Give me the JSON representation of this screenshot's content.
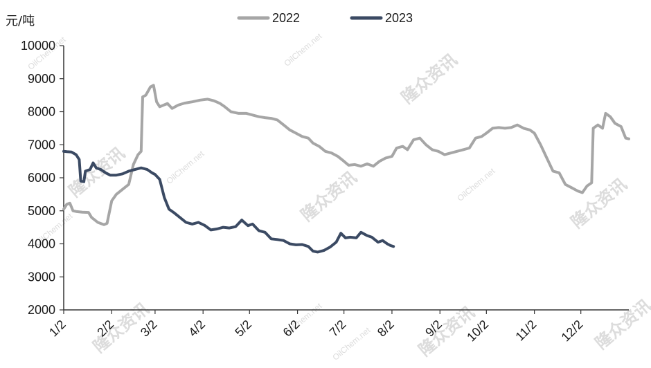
{
  "chart_data": {
    "type": "line",
    "ylabel": "元/吨",
    "ylim": [
      2000,
      10000
    ],
    "y_ticks": [
      "2000",
      "3000",
      "4000",
      "5000",
      "6000",
      "7000",
      "8000",
      "9000",
      "10000"
    ],
    "x_ticks": [
      "1/2",
      "2/2",
      "3/2",
      "4/2",
      "5/2",
      "6/2",
      "7/2",
      "8/2",
      "9/2",
      "10/2",
      "11/2",
      "12/2"
    ],
    "legend_position": "top",
    "grid": false,
    "series": [
      {
        "name": "2022",
        "color": "#a6a6a6",
        "points": [
          [
            "1/2",
            5050
          ],
          [
            "1/4",
            5200
          ],
          [
            "1/6",
            5230
          ],
          [
            "1/8",
            5000
          ],
          [
            "1/10",
            4980
          ],
          [
            "1/14",
            4960
          ],
          [
            "1/18",
            4950
          ],
          [
            "1/20",
            4800
          ],
          [
            "1/24",
            4650
          ],
          [
            "1/28",
            4580
          ],
          [
            "1/30",
            4620
          ],
          [
            "2/2",
            5300
          ],
          [
            "2/5",
            5500
          ],
          [
            "2/9",
            5650
          ],
          [
            "2/13",
            5800
          ],
          [
            "2/16",
            6400
          ],
          [
            "2/19",
            6700
          ],
          [
            "2/21",
            6800
          ],
          [
            "2/22",
            8450
          ],
          [
            "2/24",
            8500
          ],
          [
            "2/27",
            8750
          ],
          [
            "3/1",
            8800
          ],
          [
            "3/3",
            8300
          ],
          [
            "3/5",
            8150
          ],
          [
            "3/10",
            8250
          ],
          [
            "3/13",
            8100
          ],
          [
            "3/17",
            8200
          ],
          [
            "3/21",
            8260
          ],
          [
            "3/26",
            8300
          ],
          [
            "3/31",
            8350
          ],
          [
            "4/5",
            8380
          ],
          [
            "4/9",
            8330
          ],
          [
            "4/13",
            8250
          ],
          [
            "4/16",
            8150
          ],
          [
            "4/20",
            8000
          ],
          [
            "4/25",
            7950
          ],
          [
            "4/30",
            7950
          ],
          [
            "5/4",
            7900
          ],
          [
            "5/8",
            7850
          ],
          [
            "5/12",
            7820
          ],
          [
            "5/16",
            7800
          ],
          [
            "5/20",
            7750
          ],
          [
            "5/24",
            7600
          ],
          [
            "5/28",
            7450
          ],
          [
            "6/1",
            7350
          ],
          [
            "6/5",
            7250
          ],
          [
            "6/9",
            7200
          ],
          [
            "6/12",
            7050
          ],
          [
            "6/16",
            6950
          ],
          [
            "6/20",
            6800
          ],
          [
            "6/24",
            6750
          ],
          [
            "6/28",
            6650
          ],
          [
            "7/2",
            6500
          ],
          [
            "7/5",
            6380
          ],
          [
            "7/9",
            6400
          ],
          [
            "7/13",
            6350
          ],
          [
            "7/17",
            6420
          ],
          [
            "7/21",
            6350
          ],
          [
            "7/25",
            6500
          ],
          [
            "7/29",
            6600
          ],
          [
            "8/2",
            6650
          ],
          [
            "8/5",
            6900
          ],
          [
            "8/9",
            6950
          ],
          [
            "8/12",
            6850
          ],
          [
            "8/16",
            7150
          ],
          [
            "8/20",
            7200
          ],
          [
            "8/24",
            7000
          ],
          [
            "8/28",
            6850
          ],
          [
            "9/1",
            6800
          ],
          [
            "9/5",
            6700
          ],
          [
            "9/9",
            6750
          ],
          [
            "9/13",
            6800
          ],
          [
            "9/17",
            6850
          ],
          [
            "9/21",
            6900
          ],
          [
            "9/25",
            7200
          ],
          [
            "9/29",
            7250
          ],
          [
            "10/2",
            7350
          ],
          [
            "10/6",
            7500
          ],
          [
            "10/10",
            7520
          ],
          [
            "10/14",
            7500
          ],
          [
            "10/18",
            7520
          ],
          [
            "10/22",
            7600
          ],
          [
            "10/26",
            7500
          ],
          [
            "10/30",
            7450
          ],
          [
            "11/2",
            7350
          ],
          [
            "11/6",
            7000
          ],
          [
            "11/10",
            6600
          ],
          [
            "11/14",
            6200
          ],
          [
            "11/18",
            6150
          ],
          [
            "11/22",
            5800
          ],
          [
            "11/26",
            5700
          ],
          [
            "11/30",
            5600
          ],
          [
            "12/3",
            5550
          ],
          [
            "12/6",
            5750
          ],
          [
            "12/9",
            5850
          ],
          [
            "12/10",
            7500
          ],
          [
            "12/13",
            7600
          ],
          [
            "12/16",
            7500
          ],
          [
            "12/18",
            7950
          ],
          [
            "12/21",
            7850
          ],
          [
            "12/24",
            7650
          ],
          [
            "12/28",
            7550
          ],
          [
            "12/31",
            7200
          ],
          [
            "1/2+",
            7180
          ]
        ]
      },
      {
        "name": "2023",
        "color": "#3b4a63",
        "points": [
          [
            "1/2",
            6800
          ],
          [
            "1/4",
            6790
          ],
          [
            "1/7",
            6780
          ],
          [
            "1/10",
            6700
          ],
          [
            "1/12",
            6550
          ],
          [
            "1/13",
            5900
          ],
          [
            "1/15",
            5880
          ],
          [
            "1/16",
            6200
          ],
          [
            "1/19",
            6250
          ],
          [
            "1/21",
            6450
          ],
          [
            "1/23",
            6300
          ],
          [
            "1/26",
            6250
          ],
          [
            "1/29",
            6150
          ],
          [
            "2/1",
            6080
          ],
          [
            "2/5",
            6080
          ],
          [
            "2/9",
            6120
          ],
          [
            "2/13",
            6200
          ],
          [
            "2/17",
            6250
          ],
          [
            "2/21",
            6300
          ],
          [
            "2/25",
            6250
          ],
          [
            "2/28",
            6150
          ],
          [
            "3/2",
            6100
          ],
          [
            "3/5",
            5950
          ],
          [
            "3/8",
            5400
          ],
          [
            "3/11",
            5050
          ],
          [
            "3/14",
            4950
          ],
          [
            "3/18",
            4800
          ],
          [
            "3/22",
            4650
          ],
          [
            "3/26",
            4600
          ],
          [
            "3/30",
            4650
          ],
          [
            "4/3",
            4560
          ],
          [
            "4/7",
            4420
          ],
          [
            "4/11",
            4450
          ],
          [
            "4/15",
            4500
          ],
          [
            "4/19",
            4480
          ],
          [
            "4/23",
            4520
          ],
          [
            "4/27",
            4720
          ],
          [
            "5/1",
            4550
          ],
          [
            "5/4",
            4600
          ],
          [
            "5/8",
            4400
          ],
          [
            "5/12",
            4350
          ],
          [
            "5/16",
            4150
          ],
          [
            "5/20",
            4130
          ],
          [
            "5/24",
            4100
          ],
          [
            "5/28",
            4000
          ],
          [
            "6/1",
            3970
          ],
          [
            "6/5",
            3980
          ],
          [
            "6/9",
            3920
          ],
          [
            "6/12",
            3780
          ],
          [
            "6/15",
            3750
          ],
          [
            "6/19",
            3800
          ],
          [
            "6/23",
            3900
          ],
          [
            "6/27",
            4050
          ],
          [
            "6/30",
            4320
          ],
          [
            "7/3",
            4180
          ],
          [
            "7/6",
            4200
          ],
          [
            "7/10",
            4180
          ],
          [
            "7/13",
            4350
          ],
          [
            "7/17",
            4250
          ],
          [
            "7/20",
            4200
          ],
          [
            "7/24",
            4050
          ],
          [
            "7/27",
            4100
          ],
          [
            "7/30",
            4000
          ],
          [
            "8/1",
            3950
          ],
          [
            "8/3",
            3920
          ]
        ]
      }
    ]
  },
  "watermark": {
    "brand": "隆众资讯",
    "site": "OilChem.net"
  }
}
